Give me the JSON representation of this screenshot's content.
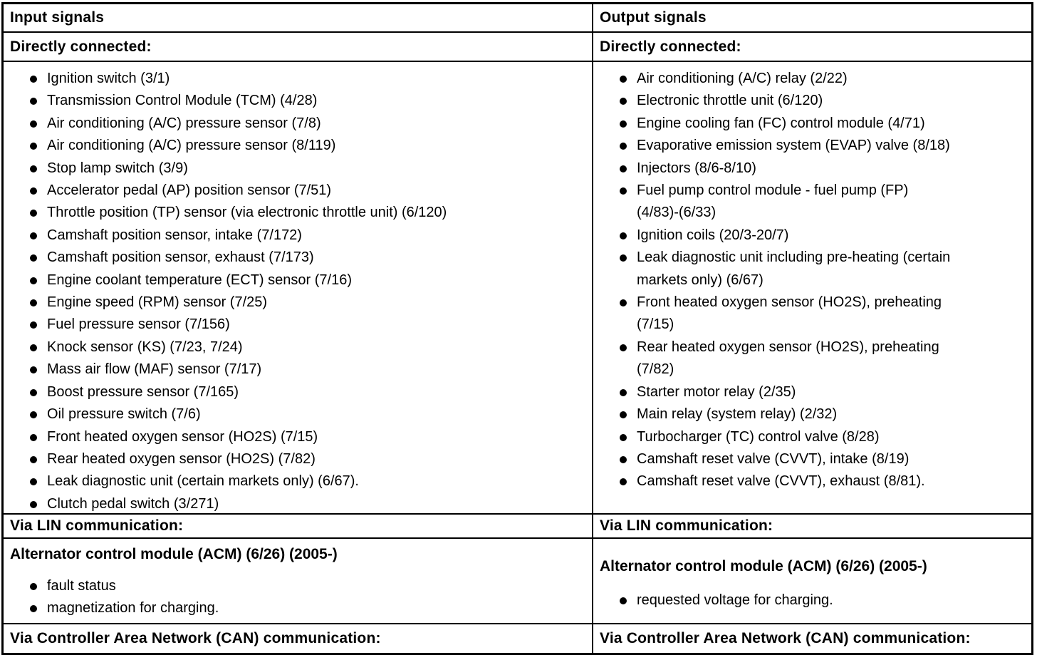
{
  "columns": [
    {
      "header": "Input signals",
      "directly_connected": {
        "label": "Directly connected:",
        "items": [
          "Ignition switch (3/1)",
          "Transmission Control Module (TCM) (4/28)",
          "Air conditioning (A/C) pressure sensor (7/8)",
          "Air conditioning (A/C) pressure sensor (8/119)",
          "Stop lamp switch (3/9)",
          "Accelerator pedal (AP) position sensor (7/51)",
          "Throttle position (TP) sensor (via electronic throttle unit) (6/120)",
          "Camshaft position sensor, intake (7/172)",
          "Camshaft position sensor, exhaust (7/173)",
          "Engine coolant temperature (ECT) sensor (7/16)",
          "Engine speed (RPM) sensor (7/25)",
          "Fuel pressure sensor (7/156)",
          "Knock sensor (KS) (7/23, 7/24)",
          "Mass air flow (MAF) sensor (7/17)",
          "Boost pressure sensor (7/165)",
          "Oil pressure switch (7/6)",
          "Front heated oxygen sensor (HO2S) (7/15)",
          "Rear heated oxygen sensor (HO2S) (7/82)",
          "Leak diagnostic unit (certain markets only) (6/67).",
          "Clutch pedal switch (3/271)"
        ]
      },
      "via_lin": {
        "label": "Via LIN communication:"
      },
      "acm": {
        "heading": "Alternator control module (ACM) (6/26) (2005-)",
        "items": [
          "fault status",
          "magnetization for charging."
        ]
      },
      "via_can": {
        "label": "Via Controller Area Network (CAN) communication:"
      }
    },
    {
      "header": "Output signals",
      "directly_connected": {
        "label": "Directly connected:",
        "items": [
          "Air conditioning (A/C) relay (2/22)",
          "Electronic throttle unit (6/120)",
          "Engine cooling fan (FC) control module (4/71)",
          "Evaporative emission system (EVAP) valve (8/18)",
          "Injectors (8/6-8/10)",
          "Fuel pump control module - fuel pump (FP)\n(4/83)-(6/33)",
          "Ignition coils (20/3-20/7)",
          "Leak diagnostic unit including pre-heating (certain\nmarkets only) (6/67)",
          "Front heated oxygen sensor (HO2S), preheating\n(7/15)",
          "Rear heated oxygen sensor (HO2S), preheating\n(7/82)",
          "Starter motor relay (2/35)",
          "Main relay (system relay) (2/32)",
          "Turbocharger (TC) control valve (8/28)",
          "Camshaft reset valve (CVVT), intake (8/19)",
          "Camshaft reset valve (CVVT), exhaust (8/81)."
        ]
      },
      "via_lin": {
        "label": "Via LIN communication:"
      },
      "acm": {
        "heading": "Alternator control module (ACM) (6/26) (2005-)",
        "items": [
          "requested voltage for charging."
        ]
      },
      "via_can": {
        "label": "Via Controller Area Network (CAN) communication:"
      }
    }
  ]
}
